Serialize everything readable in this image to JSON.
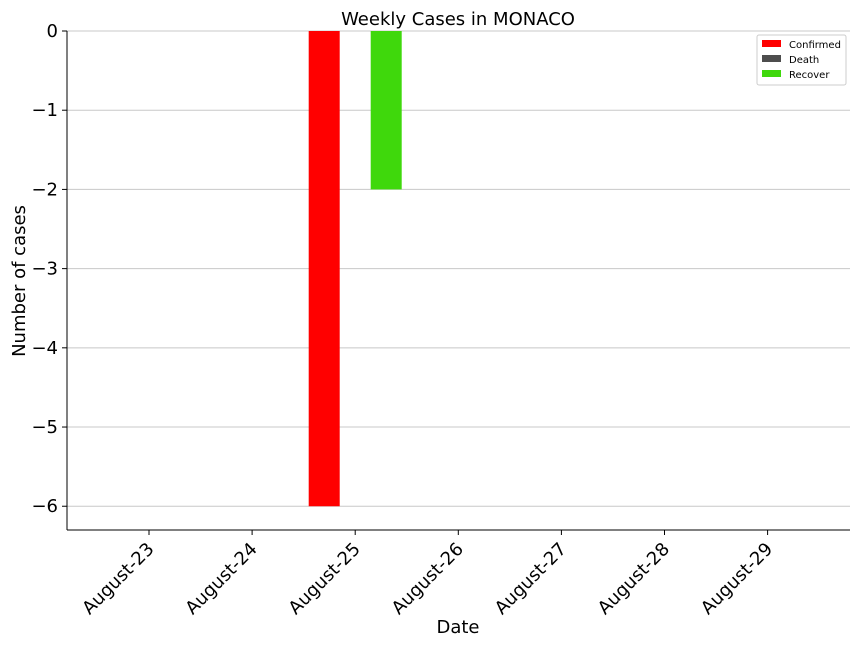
{
  "chart_data": {
    "type": "bar",
    "title": "Weekly Cases in MONACO",
    "xlabel": "Date",
    "ylabel": "Number of cases",
    "categories": [
      "August-23",
      "August-24",
      "August-25",
      "August-26",
      "August-27",
      "August-28",
      "August-29"
    ],
    "series": [
      {
        "name": "Confirmed",
        "color": "#ff0000",
        "values": [
          0,
          0,
          -6,
          0,
          0,
          0,
          0
        ]
      },
      {
        "name": "Death",
        "color": "#4d4d4d",
        "values": [
          0,
          0,
          0,
          0,
          0,
          0,
          0
        ]
      },
      {
        "name": "Recover",
        "color": "#3fd80c",
        "values": [
          0,
          0,
          -2,
          0,
          0,
          0,
          0
        ]
      }
    ],
    "ylim": [
      -6.3,
      0
    ],
    "yticks": [
      0,
      -1,
      -2,
      -3,
      -4,
      -5,
      -6
    ],
    "ytick_labels": [
      "0",
      "−1",
      "−2",
      "−3",
      "−4",
      "−5",
      "−6"
    ],
    "grid": "horizontal",
    "legend_position": "top-right"
  }
}
